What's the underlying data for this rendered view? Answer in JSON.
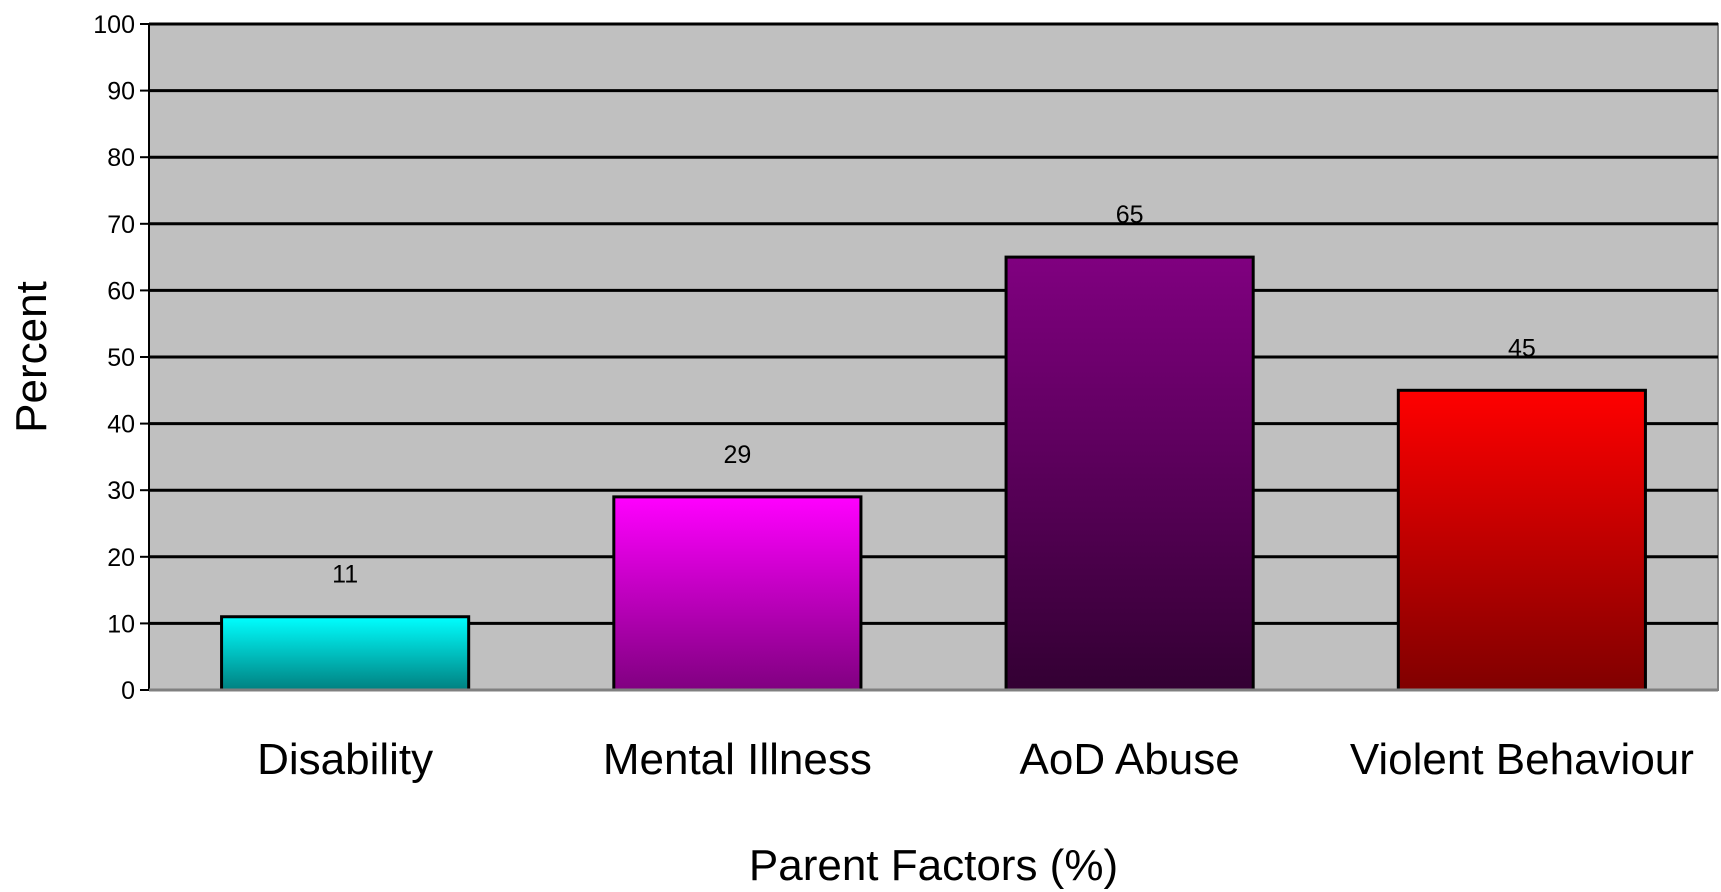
{
  "chart_data": {
    "type": "bar",
    "title": "",
    "xlabel": "Parent Factors (%)",
    "ylabel": "Percent",
    "ylim": [
      0,
      100
    ],
    "yticks": [
      0,
      10,
      20,
      30,
      40,
      50,
      60,
      70,
      80,
      90,
      100
    ],
    "categories": [
      "Disability",
      "Mental Illness",
      "AoD Abuse",
      "Violent Behaviour"
    ],
    "values": [
      11,
      29,
      65,
      45
    ],
    "data_labels": [
      "11",
      "29",
      "65",
      "45"
    ],
    "grid": true,
    "legend": "none",
    "colors": {
      "plot_background": "#c0c0c0",
      "gridline": "#000000",
      "bars": [
        [
          "#00ffff",
          "#008080"
        ],
        [
          "#ff00ff",
          "#800080"
        ],
        [
          "#800080",
          "#330033"
        ],
        [
          "#ff0000",
          "#800000"
        ]
      ]
    }
  }
}
